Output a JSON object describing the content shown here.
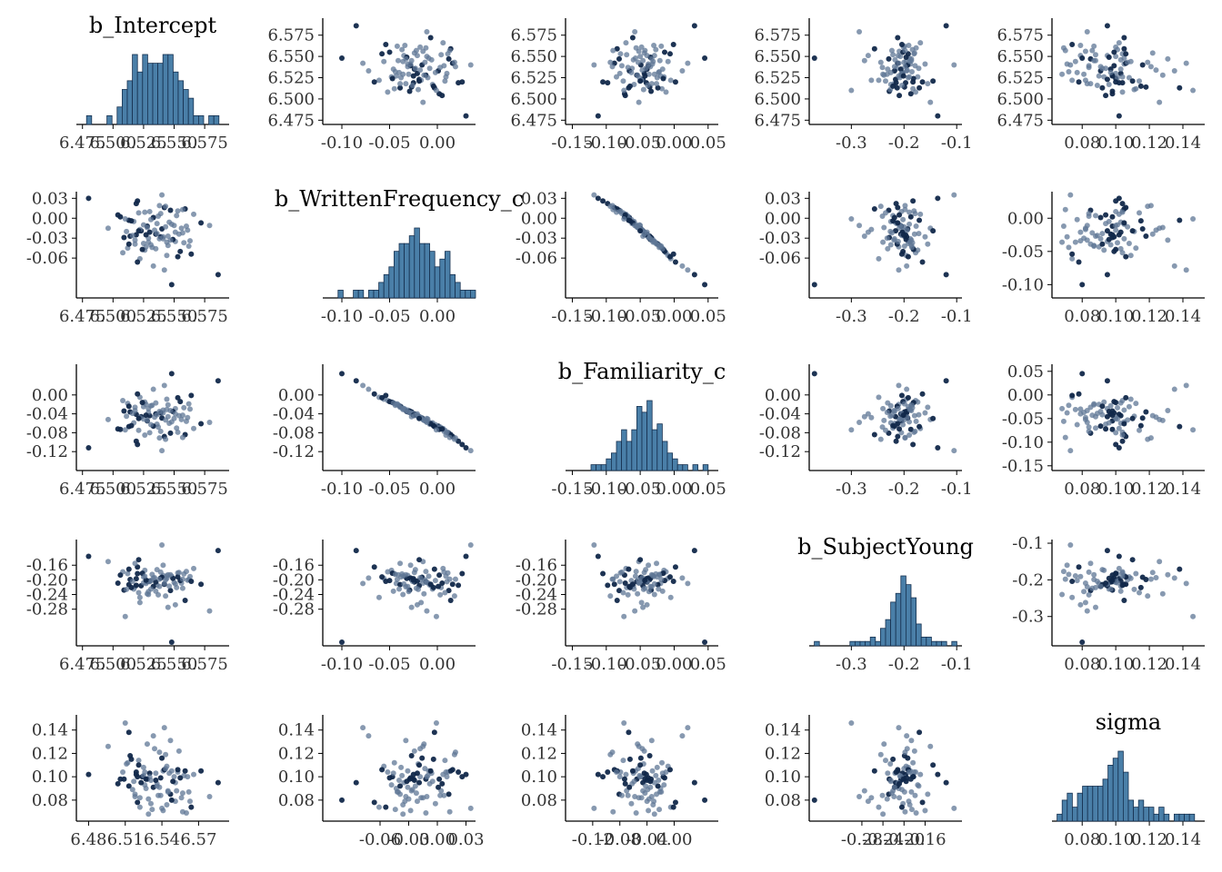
{
  "chart_data": {
    "type": "scatter",
    "layout": "pairs-matrix",
    "colors": {
      "histogram_fill": "#4a7fa8",
      "histogram_edge": "#16304f",
      "point_light": "#5f7796",
      "point_dark": "#11284a",
      "axis": "#000000",
      "text": "#333333"
    },
    "variables": [
      {
        "name": "b_Intercept",
        "range": [
          6.47,
          6.595
        ],
        "ticks": [
          "6.475",
          "6.500",
          "6.525",
          "6.550",
          "6.575"
        ],
        "ticks_bottom": [
          "6.48",
          "6.51",
          "6.54",
          "6.57"
        ]
      },
      {
        "name": "b_WrittenFrequency_c",
        "range": [
          -0.12,
          0.04
        ],
        "ticks": [
          "-0.10",
          "-0.05",
          "0.00"
        ],
        "ticks_bottom": [
          "-0.06",
          "-0.03",
          "0.00",
          "0.03"
        ]
      },
      {
        "name": "b_Familiarity_c",
        "range": [
          -0.16,
          0.065
        ],
        "ticks": [
          "-0.15",
          "-0.10",
          "-0.05",
          "0.00",
          "0.05"
        ],
        "ticks_bottom": [
          "-0.12",
          "-0.08",
          "-0.04",
          "0.00"
        ]
      },
      {
        "name": "b_SubjectYoung",
        "range": [
          -0.38,
          -0.09
        ],
        "ticks": [
          "-0.3",
          "-0.2",
          "-0.1"
        ],
        "ticks_bottom": [
          "-0.28",
          "-0.24",
          "-0.20",
          "-0.16"
        ]
      },
      {
        "name": "sigma",
        "range": [
          0.062,
          0.153
        ],
        "ticks": [
          "0.08",
          "0.10",
          "0.12",
          "0.14"
        ],
        "ticks_bottom": [
          "0.08",
          "0.10",
          "0.12",
          "0.14"
        ]
      }
    ],
    "histogram_note_bins": 30,
    "samples": {
      "b_Intercept": [
        6.528,
        6.541,
        6.552,
        6.519,
        6.536,
        6.512,
        6.547,
        6.561,
        6.525,
        6.533,
        6.508,
        6.556,
        6.539,
        6.521,
        6.545,
        6.53,
        6.517,
        6.563,
        6.542,
        6.526,
        6.55,
        6.514,
        6.537,
        6.558,
        6.523,
        6.544,
        6.531,
        6.509,
        6.553,
        6.527,
        6.54,
        6.518,
        6.566,
        6.535,
        6.522,
        6.548,
        6.513,
        6.538,
        6.557,
        6.524,
        6.543,
        6.529,
        6.506,
        6.551,
        6.534,
        6.52,
        6.546,
        6.516,
        6.559,
        6.532,
        6.525,
        6.549,
        6.511,
        6.539,
        6.555,
        6.528,
        6.544,
        6.519,
        6.536,
        6.562,
        6.515,
        6.541,
        6.53,
        6.553,
        6.522,
        6.547,
        6.504,
        6.535,
        6.56,
        6.527,
        6.543,
        6.518,
        6.572,
        6.533,
        6.551,
        6.52,
        6.538,
        6.496,
        6.564,
        6.526,
        6.545,
        6.513,
        6.531,
        6.557,
        6.521,
        6.542,
        6.579,
        6.48,
        6.529,
        6.554,
        6.586,
        6.51,
        6.54,
        6.548
      ],
      "b_WrittenFrequency_c": [
        -0.012,
        -0.031,
        0.004,
        -0.025,
        -0.008,
        -0.045,
        0.012,
        -0.018,
        -0.038,
        0.001,
        -0.052,
        -0.015,
        -0.028,
        0.008,
        -0.041,
        -0.021,
        -0.005,
        -0.034,
        0.016,
        -0.048,
        -0.011,
        -0.027,
        0.003,
        -0.037,
        -0.019,
        -0.056,
        -0.002,
        -0.029,
        0.011,
        -0.043,
        -0.016,
        -0.033,
        0.006,
        -0.024,
        -0.061,
        -0.009,
        -0.039,
        0.019,
        -0.022,
        -0.047,
        -0.013,
        -0.03,
        0.002,
        -0.035,
        -0.018,
        -0.066,
        -0.006,
        -0.026,
        0.014,
        -0.044,
        -0.01,
        -0.032,
        -0.02,
        0.007,
        -0.05,
        -0.014,
        -0.036,
        0.022,
        -0.023,
        -0.042,
        -0.004,
        -0.028,
        0.01,
        -0.058,
        -0.017,
        -0.033,
        0.005,
        -0.046,
        -0.012,
        -0.025,
        0.018,
        -0.039,
        -0.007,
        -0.072,
        -0.021,
        0.026,
        -0.031,
        -0.015,
        -0.054,
        0.009,
        -0.027,
        -0.003,
        -0.04,
        0.013,
        -0.019,
        -0.078,
        -0.011,
        0.03,
        -0.036,
        -0.024,
        -0.085,
        -0.001,
        0.035,
        -0.1
      ],
      "b_Familiarity_c": [
        -0.055,
        -0.032,
        -0.07,
        -0.041,
        -0.062,
        -0.018,
        -0.081,
        -0.048,
        -0.025,
        -0.066,
        -0.012,
        -0.052,
        -0.038,
        -0.075,
        -0.021,
        -0.044,
        -0.059,
        -0.03,
        -0.088,
        -0.015,
        -0.05,
        -0.036,
        -0.068,
        -0.027,
        -0.046,
        -0.009,
        -0.063,
        -0.034,
        -0.079,
        -0.02,
        -0.049,
        -0.033,
        -0.071,
        -0.04,
        -0.005,
        -0.057,
        -0.024,
        -0.091,
        -0.043,
        -0.016,
        -0.053,
        -0.037,
        -0.073,
        -0.029,
        -0.047,
        0.002,
        -0.06,
        -0.039,
        -0.084,
        -0.022,
        -0.051,
        -0.035,
        -0.045,
        -0.077,
        -0.014,
        -0.054,
        -0.031,
        -0.098,
        -0.042,
        -0.019,
        -0.065,
        -0.038,
        -0.08,
        -0.006,
        -0.048,
        -0.033,
        -0.072,
        -0.017,
        -0.056,
        -0.043,
        -0.094,
        -0.026,
        -0.061,
        0.012,
        -0.04,
        -0.105,
        -0.035,
        -0.052,
        -0.001,
        -0.085,
        -0.046,
        -0.067,
        -0.023,
        -0.09,
        -0.05,
        0.02,
        -0.058,
        -0.112,
        -0.029,
        -0.044,
        0.03,
        -0.074,
        -0.118,
        0.045
      ],
      "b_SubjectYoung": [
        -0.205,
        -0.188,
        -0.221,
        -0.197,
        -0.214,
        -0.183,
        -0.229,
        -0.201,
        -0.192,
        -0.218,
        -0.178,
        -0.209,
        -0.195,
        -0.235,
        -0.186,
        -0.203,
        -0.225,
        -0.191,
        -0.212,
        -0.174,
        -0.207,
        -0.199,
        -0.241,
        -0.184,
        -0.216,
        -0.196,
        -0.202,
        -0.228,
        -0.181,
        -0.21,
        -0.193,
        -0.219,
        -0.169,
        -0.206,
        -0.248,
        -0.19,
        -0.213,
        -0.198,
        -0.223,
        -0.182,
        -0.2,
        -0.232,
        -0.187,
        -0.211,
        -0.194,
        -0.165,
        -0.217,
        -0.204,
        -0.256,
        -0.185,
        -0.208,
        -0.196,
        -0.226,
        -0.179,
        -0.202,
        -0.238,
        -0.189,
        -0.215,
        -0.172,
        -0.199,
        -0.221,
        -0.16,
        -0.205,
        -0.192,
        -0.262,
        -0.186,
        -0.209,
        -0.231,
        -0.177,
        -0.201,
        -0.244,
        -0.155,
        -0.212,
        -0.195,
        -0.268,
        -0.183,
        -0.218,
        -0.15,
        -0.204,
        -0.19,
        -0.275,
        -0.171,
        -0.225,
        -0.198,
        -0.145,
        -0.21,
        -0.285,
        -0.136,
        -0.24,
        -0.18,
        -0.12,
        -0.3,
        -0.105,
        -0.37
      ],
      "sigma": [
        0.098,
        0.105,
        0.088,
        0.102,
        0.094,
        0.112,
        0.085,
        0.1,
        0.108,
        0.091,
        0.104,
        0.082,
        0.099,
        0.114,
        0.087,
        0.103,
        0.096,
        0.079,
        0.106,
        0.093,
        0.1,
        0.118,
        0.084,
        0.101,
        0.095,
        0.109,
        0.077,
        0.098,
        0.104,
        0.09,
        0.116,
        0.083,
        0.102,
        0.097,
        0.074,
        0.105,
        0.092,
        0.121,
        0.086,
        0.1,
        0.107,
        0.081,
        0.098,
        0.095,
        0.124,
        0.078,
        0.103,
        0.089,
        0.105,
        0.072,
        0.101,
        0.096,
        0.111,
        0.084,
        0.099,
        0.128,
        0.076,
        0.104,
        0.092,
        0.087,
        0.115,
        0.071,
        0.1,
        0.106,
        0.082,
        0.131,
        0.094,
        0.103,
        0.069,
        0.098,
        0.119,
        0.085,
        0.105,
        0.135,
        0.079,
        0.1,
        0.091,
        0.126,
        0.074,
        0.104,
        0.088,
        0.138,
        0.097,
        0.07,
        0.11,
        0.142,
        0.083,
        0.102,
        0.068,
        0.122,
        0.095,
        0.146,
        0.073,
        0.08
      ]
    }
  }
}
